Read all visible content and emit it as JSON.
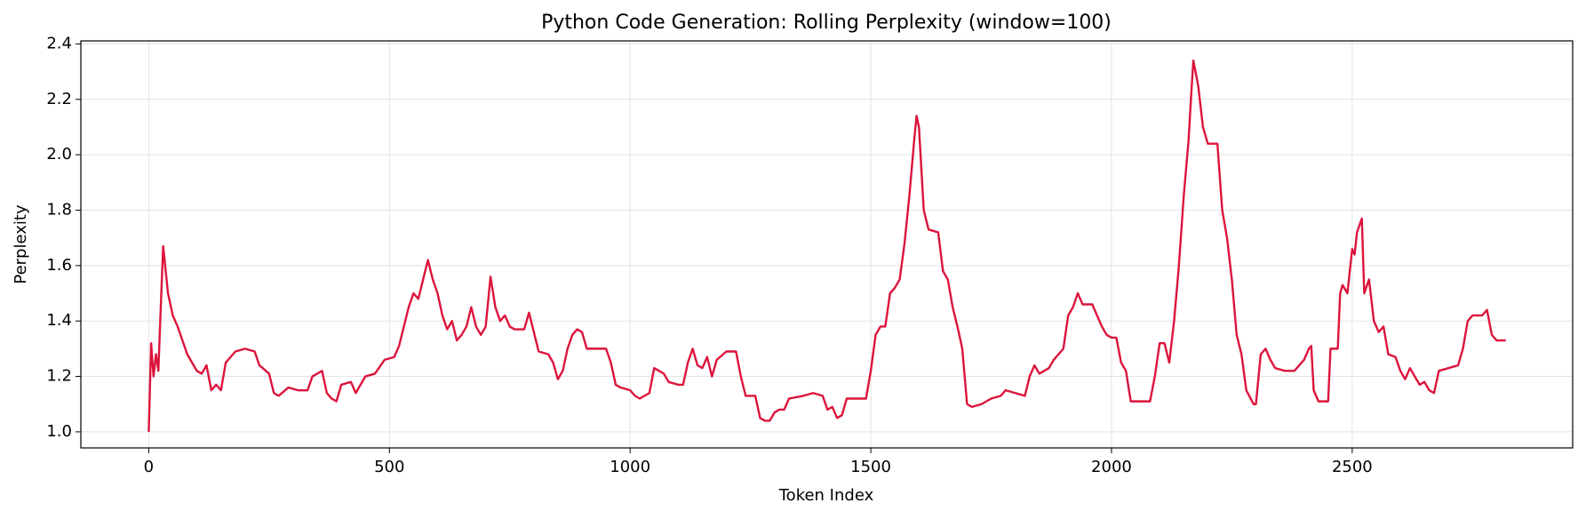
{
  "chart_data": {
    "type": "line",
    "title": "Python Code Generation: Rolling Perplexity (window=100)",
    "xlabel": "Token Index",
    "ylabel": "Perplexity",
    "x": [
      0,
      5,
      10,
      15,
      20,
      25,
      30,
      40,
      50,
      60,
      70,
      80,
      90,
      100,
      110,
      120,
      130,
      140,
      150,
      160,
      170,
      180,
      200,
      220,
      230,
      250,
      260,
      270,
      290,
      310,
      330,
      340,
      360,
      370,
      380,
      390,
      400,
      420,
      430,
      450,
      470,
      490,
      510,
      520,
      530,
      540,
      550,
      560,
      570,
      580,
      590,
      600,
      610,
      620,
      630,
      640,
      650,
      660,
      670,
      680,
      690,
      700,
      710,
      720,
      730,
      740,
      750,
      760,
      780,
      790,
      800,
      810,
      830,
      840,
      850,
      860,
      870,
      880,
      890,
      900,
      910,
      930,
      950,
      960,
      970,
      980,
      1000,
      1010,
      1020,
      1040,
      1050,
      1070,
      1080,
      1100,
      1110,
      1120,
      1130,
      1140,
      1150,
      1160,
      1170,
      1180,
      1200,
      1220,
      1230,
      1240,
      1260,
      1270,
      1280,
      1290,
      1300,
      1310,
      1320,
      1330,
      1360,
      1380,
      1400,
      1410,
      1420,
      1430,
      1440,
      1450,
      1470,
      1490,
      1500,
      1510,
      1520,
      1530,
      1540,
      1550,
      1560,
      1570,
      1580,
      1590,
      1595,
      1600,
      1610,
      1620,
      1640,
      1650,
      1660,
      1670,
      1680,
      1690,
      1700,
      1710,
      1730,
      1750,
      1770,
      1780,
      1800,
      1820,
      1830,
      1840,
      1850,
      1870,
      1880,
      1900,
      1910,
      1920,
      1930,
      1940,
      1960,
      1970,
      1980,
      1990,
      2000,
      2010,
      2020,
      2030,
      2040,
      2060,
      2080,
      2090,
      2100,
      2110,
      2120,
      2130,
      2140,
      2150,
      2160,
      2165,
      2170,
      2180,
      2190,
      2200,
      2220,
      2230,
      2240,
      2250,
      2260,
      2270,
      2280,
      2295,
      2300,
      2310,
      2320,
      2330,
      2340,
      2360,
      2380,
      2400,
      2410,
      2415,
      2420,
      2430,
      2450,
      2455,
      2470,
      2475,
      2480,
      2490,
      2500,
      2505,
      2510,
      2520,
      2525,
      2535,
      2545,
      2555,
      2565,
      2575,
      2590,
      2600,
      2610,
      2620,
      2630,
      2640,
      2650,
      2660,
      2670,
      2680,
      2700,
      2720,
      2730,
      2740,
      2750,
      2770,
      2780,
      2790,
      2800,
      2819
    ],
    "series": [
      {
        "name": "Rolling Perplexity",
        "color": "#dc143c",
        "values": [
          1.0,
          1.32,
          1.2,
          1.28,
          1.22,
          1.45,
          1.67,
          1.5,
          1.42,
          1.38,
          1.33,
          1.28,
          1.25,
          1.22,
          1.21,
          1.24,
          1.15,
          1.17,
          1.15,
          1.25,
          1.27,
          1.29,
          1.3,
          1.29,
          1.24,
          1.21,
          1.14,
          1.13,
          1.16,
          1.15,
          1.15,
          1.2,
          1.22,
          1.14,
          1.12,
          1.11,
          1.17,
          1.18,
          1.14,
          1.2,
          1.21,
          1.26,
          1.27,
          1.31,
          1.38,
          1.45,
          1.5,
          1.48,
          1.55,
          1.62,
          1.55,
          1.5,
          1.42,
          1.37,
          1.4,
          1.33,
          1.35,
          1.38,
          1.45,
          1.38,
          1.35,
          1.38,
          1.56,
          1.45,
          1.4,
          1.42,
          1.38,
          1.37,
          1.37,
          1.43,
          1.36,
          1.29,
          1.28,
          1.25,
          1.19,
          1.22,
          1.3,
          1.35,
          1.37,
          1.36,
          1.3,
          1.3,
          1.3,
          1.25,
          1.17,
          1.16,
          1.15,
          1.13,
          1.12,
          1.14,
          1.23,
          1.21,
          1.18,
          1.17,
          1.17,
          1.25,
          1.3,
          1.24,
          1.23,
          1.27,
          1.2,
          1.26,
          1.29,
          1.29,
          1.2,
          1.13,
          1.13,
          1.05,
          1.04,
          1.04,
          1.07,
          1.08,
          1.08,
          1.12,
          1.13,
          1.14,
          1.13,
          1.08,
          1.09,
          1.05,
          1.06,
          1.12,
          1.12,
          1.12,
          1.22,
          1.35,
          1.38,
          1.38,
          1.5,
          1.52,
          1.55,
          1.68,
          1.85,
          2.05,
          2.14,
          2.1,
          1.8,
          1.73,
          1.72,
          1.58,
          1.55,
          1.45,
          1.38,
          1.3,
          1.1,
          1.09,
          1.1,
          1.12,
          1.13,
          1.15,
          1.14,
          1.13,
          1.2,
          1.24,
          1.21,
          1.23,
          1.26,
          1.3,
          1.42,
          1.45,
          1.5,
          1.46,
          1.46,
          1.42,
          1.38,
          1.35,
          1.34,
          1.34,
          1.25,
          1.22,
          1.11,
          1.11,
          1.11,
          1.2,
          1.32,
          1.32,
          1.25,
          1.4,
          1.6,
          1.85,
          2.05,
          2.2,
          2.34,
          2.25,
          2.1,
          2.04,
          2.04,
          1.8,
          1.7,
          1.55,
          1.35,
          1.28,
          1.15,
          1.1,
          1.1,
          1.28,
          1.3,
          1.26,
          1.23,
          1.22,
          1.22,
          1.26,
          1.3,
          1.31,
          1.15,
          1.11,
          1.11,
          1.3,
          1.3,
          1.5,
          1.53,
          1.5,
          1.66,
          1.64,
          1.72,
          1.77,
          1.5,
          1.55,
          1.4,
          1.36,
          1.38,
          1.28,
          1.27,
          1.22,
          1.19,
          1.23,
          1.2,
          1.17,
          1.18,
          1.15,
          1.14,
          1.22,
          1.23,
          1.24,
          1.3,
          1.4,
          1.42,
          1.42,
          1.44,
          1.35,
          1.33,
          1.33
        ]
      }
    ],
    "xlim": [
      -141,
      2958
    ],
    "ylim": [
      0.942,
      2.411
    ],
    "xticks": [
      0,
      500,
      1000,
      1500,
      2000,
      2500
    ],
    "yticks": [
      {
        "value": 1,
        "label": "1.0"
      },
      1.2,
      1.4,
      1.6,
      1.8,
      {
        "value": 2,
        "label": "2.0"
      },
      2.2,
      2.4
    ],
    "grid": true
  }
}
